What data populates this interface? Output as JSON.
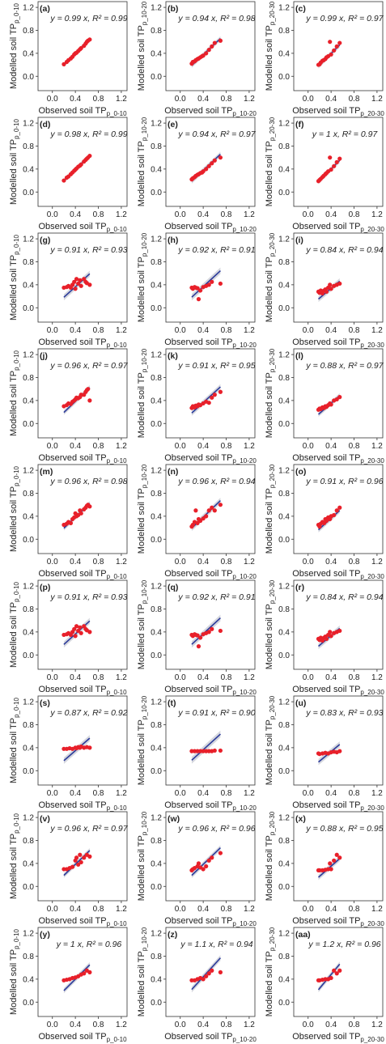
{
  "figure": {
    "colors": {
      "point": "#e8202a",
      "line": "#2b3a9a",
      "band": "#b9bdc8",
      "frame": "#333333"
    },
    "tick_labels": [
      "0.0",
      "0.4",
      "0.8",
      "1.2"
    ],
    "x_label_prefix": "Observed soil TP",
    "y_label_prefix": "Modelled soil TP",
    "depth_subscripts": [
      "p_0-10",
      "p_10-20",
      "p_20-30"
    ]
  },
  "chart_data": [
    {
      "type": "scatter",
      "label": "(a)",
      "equation": "y = 0.99 x, R² = 0.99",
      "slope": 0.99,
      "r2": 0.99,
      "xlabel": "Observed soil TPp_0-10",
      "ylabel": "Modelled soil TPp_0-10",
      "xlim": [
        -0.25,
        1.3
      ],
      "ylim": [
        -0.25,
        1.3
      ],
      "x": [
        0.2,
        0.25,
        0.28,
        0.32,
        0.35,
        0.38,
        0.4,
        0.42,
        0.45,
        0.48,
        0.5,
        0.55,
        0.58,
        0.6,
        0.62,
        0.65
      ],
      "y": [
        0.21,
        0.25,
        0.28,
        0.31,
        0.34,
        0.38,
        0.4,
        0.41,
        0.44,
        0.47,
        0.49,
        0.53,
        0.57,
        0.6,
        0.62,
        0.64
      ]
    },
    {
      "type": "scatter",
      "label": "(b)",
      "equation": "y = 0.94 x, R² = 0.98",
      "slope": 0.94,
      "r2": 0.98,
      "xlabel": "Observed soil TPp_10-20",
      "ylabel": "Modelled soil TPp_10-20",
      "xlim": [
        -0.25,
        1.3
      ],
      "ylim": [
        -0.25,
        1.3
      ],
      "x": [
        0.2,
        0.22,
        0.25,
        0.27,
        0.3,
        0.32,
        0.35,
        0.38,
        0.4,
        0.45,
        0.5,
        0.55,
        0.6,
        0.7
      ],
      "y": [
        0.22,
        0.25,
        0.26,
        0.28,
        0.3,
        0.31,
        0.33,
        0.35,
        0.36,
        0.4,
        0.46,
        0.52,
        0.58,
        0.62
      ]
    },
    {
      "type": "scatter",
      "label": "(c)",
      "equation": "y = 0.99 x, R² = 0.97",
      "slope": 0.99,
      "r2": 0.97,
      "xlabel": "Observed soil TPp_20-30",
      "ylabel": "Modelled soil TPp_20-30",
      "xlim": [
        -0.25,
        1.3
      ],
      "ylim": [
        -0.25,
        1.3
      ],
      "x": [
        0.18,
        0.2,
        0.22,
        0.25,
        0.27,
        0.3,
        0.32,
        0.35,
        0.38,
        0.4,
        0.45,
        0.5,
        0.55
      ],
      "y": [
        0.2,
        0.21,
        0.24,
        0.27,
        0.28,
        0.3,
        0.33,
        0.35,
        0.6,
        0.38,
        0.45,
        0.52,
        0.58
      ]
    },
    {
      "type": "scatter",
      "label": "(d)",
      "equation": "y = 0.98 x, R² = 0.99",
      "slope": 0.98,
      "r2": 0.99,
      "xlabel": "Observed soil TPp_0-10",
      "ylabel": "Modelled soil TPp_0-10",
      "xlim": [
        -0.25,
        1.3
      ],
      "ylim": [
        -0.25,
        1.3
      ],
      "x": [
        0.2,
        0.25,
        0.28,
        0.32,
        0.35,
        0.38,
        0.4,
        0.42,
        0.45,
        0.48,
        0.5,
        0.55,
        0.58,
        0.6,
        0.62,
        0.65
      ],
      "y": [
        0.2,
        0.25,
        0.27,
        0.31,
        0.34,
        0.37,
        0.39,
        0.41,
        0.44,
        0.46,
        0.48,
        0.53,
        0.56,
        0.58,
        0.6,
        0.63
      ]
    },
    {
      "type": "scatter",
      "label": "(e)",
      "equation": "y = 0.94 x, R² = 0.97",
      "slope": 0.94,
      "r2": 0.97,
      "xlabel": "Observed soil TPp_10-20",
      "ylabel": "Modelled soil TPp_10-20",
      "xlim": [
        -0.25,
        1.3
      ],
      "ylim": [
        -0.25,
        1.3
      ],
      "x": [
        0.2,
        0.22,
        0.25,
        0.27,
        0.3,
        0.32,
        0.35,
        0.38,
        0.4,
        0.45,
        0.5,
        0.55,
        0.6,
        0.7
      ],
      "y": [
        0.22,
        0.24,
        0.26,
        0.28,
        0.3,
        0.31,
        0.33,
        0.34,
        0.36,
        0.4,
        0.45,
        0.5,
        0.55,
        0.6
      ]
    },
    {
      "type": "scatter",
      "label": "(f)",
      "equation": "y = 1 x, R² = 0.97",
      "slope": 1.0,
      "r2": 0.97,
      "xlabel": "Observed soil TPp_20-30",
      "ylabel": "Modelled soil TPp_20-30",
      "xlim": [
        -0.25,
        1.3
      ],
      "ylim": [
        -0.25,
        1.3
      ],
      "x": [
        0.18,
        0.2,
        0.22,
        0.25,
        0.27,
        0.3,
        0.32,
        0.35,
        0.38,
        0.4,
        0.45,
        0.5,
        0.55
      ],
      "y": [
        0.19,
        0.21,
        0.23,
        0.26,
        0.28,
        0.31,
        0.33,
        0.36,
        0.6,
        0.39,
        0.45,
        0.52,
        0.58
      ]
    },
    {
      "type": "scatter",
      "label": "(g)",
      "equation": "y = 0.91 x, R² = 0.93",
      "slope": 0.91,
      "r2": 0.93,
      "xlabel": "Observed soil TPp_0-10",
      "ylabel": "Modelled soil TPp_0-10",
      "xlim": [
        -0.25,
        1.3
      ],
      "ylim": [
        -0.25,
        1.3
      ],
      "x": [
        0.2,
        0.25,
        0.28,
        0.32,
        0.35,
        0.38,
        0.4,
        0.42,
        0.45,
        0.48,
        0.5,
        0.55,
        0.58,
        0.6,
        0.65
      ],
      "y": [
        0.35,
        0.36,
        0.38,
        0.35,
        0.4,
        0.45,
        0.33,
        0.5,
        0.42,
        0.48,
        0.38,
        0.5,
        0.45,
        0.43,
        0.4
      ]
    },
    {
      "type": "scatter",
      "label": "(h)",
      "equation": "y = 0.92 x, R² = 0.91",
      "slope": 0.92,
      "r2": 0.91,
      "xlabel": "Observed soil TPp_10-20",
      "ylabel": "Modelled soil TPp_10-20",
      "xlim": [
        -0.25,
        1.3
      ],
      "ylim": [
        -0.25,
        1.3
      ],
      "x": [
        0.2,
        0.22,
        0.25,
        0.27,
        0.3,
        0.32,
        0.35,
        0.4,
        0.45,
        0.5,
        0.55,
        0.7
      ],
      "y": [
        0.35,
        0.33,
        0.36,
        0.35,
        0.34,
        0.15,
        0.3,
        0.36,
        0.38,
        0.4,
        0.45,
        0.42
      ]
    },
    {
      "type": "scatter",
      "label": "(i)",
      "equation": "y = 0.84 x, R² = 0.94",
      "slope": 0.84,
      "r2": 0.94,
      "xlabel": "Observed soil TPp_20-30",
      "ylabel": "Modelled soil TPp_20-30",
      "xlim": [
        -0.25,
        1.3
      ],
      "ylim": [
        -0.25,
        1.3
      ],
      "x": [
        0.18,
        0.2,
        0.22,
        0.25,
        0.28,
        0.3,
        0.32,
        0.35,
        0.38,
        0.4,
        0.45,
        0.5,
        0.55
      ],
      "y": [
        0.28,
        0.26,
        0.3,
        0.25,
        0.3,
        0.32,
        0.28,
        0.35,
        0.4,
        0.33,
        0.38,
        0.4,
        0.42
      ]
    },
    {
      "type": "scatter",
      "label": "(j)",
      "equation": "y = 0.96 x, R² = 0.97",
      "slope": 0.96,
      "r2": 0.97,
      "xlabel": "Observed soil TPp_0-10",
      "ylabel": "Modelled soil TPp_0-10",
      "xlim": [
        -0.25,
        1.3
      ],
      "ylim": [
        -0.25,
        1.3
      ],
      "x": [
        0.2,
        0.25,
        0.28,
        0.32,
        0.35,
        0.38,
        0.4,
        0.42,
        0.45,
        0.48,
        0.5,
        0.55,
        0.58,
        0.6,
        0.62,
        0.65
      ],
      "y": [
        0.3,
        0.32,
        0.35,
        0.34,
        0.38,
        0.4,
        0.42,
        0.45,
        0.44,
        0.46,
        0.5,
        0.5,
        0.55,
        0.58,
        0.6,
        0.4
      ]
    },
    {
      "type": "scatter",
      "label": "(k)",
      "equation": "y = 0.91 x, R² = 0.95",
      "slope": 0.91,
      "r2": 0.95,
      "xlabel": "Observed soil TPp_10-20",
      "ylabel": "Modelled soil TPp_10-20",
      "xlim": [
        -0.25,
        1.3
      ],
      "ylim": [
        -0.25,
        1.3
      ],
      "x": [
        0.2,
        0.22,
        0.25,
        0.27,
        0.3,
        0.32,
        0.35,
        0.4,
        0.45,
        0.5,
        0.55,
        0.6,
        0.7
      ],
      "y": [
        0.27,
        0.3,
        0.28,
        0.31,
        0.3,
        0.33,
        0.32,
        0.35,
        0.38,
        0.36,
        0.45,
        0.5,
        0.55
      ]
    },
    {
      "type": "scatter",
      "label": "(l)",
      "equation": "y = 0.88 x, R² = 0.97",
      "slope": 0.88,
      "r2": 0.97,
      "xlabel": "Observed soil TPp_20-30",
      "ylabel": "Modelled soil TPp_20-30",
      "xlim": [
        -0.25,
        1.3
      ],
      "ylim": [
        -0.25,
        1.3
      ],
      "x": [
        0.18,
        0.2,
        0.22,
        0.25,
        0.28,
        0.3,
        0.32,
        0.35,
        0.38,
        0.4,
        0.45,
        0.5,
        0.55
      ],
      "y": [
        0.24,
        0.26,
        0.25,
        0.28,
        0.27,
        0.3,
        0.29,
        0.32,
        0.35,
        0.33,
        0.4,
        0.42,
        0.46
      ]
    },
    {
      "type": "scatter",
      "label": "(m)",
      "equation": "y = 0.96 x, R² = 0.98",
      "slope": 0.96,
      "r2": 0.98,
      "xlabel": "Observed soil TPp_0-10",
      "ylabel": "Modelled soil TPp_0-10",
      "xlim": [
        -0.25,
        1.3
      ],
      "ylim": [
        -0.25,
        1.3
      ],
      "x": [
        0.2,
        0.25,
        0.28,
        0.32,
        0.35,
        0.38,
        0.4,
        0.42,
        0.45,
        0.48,
        0.5,
        0.55,
        0.58,
        0.6,
        0.62,
        0.65
      ],
      "y": [
        0.25,
        0.27,
        0.3,
        0.28,
        0.35,
        0.38,
        0.45,
        0.4,
        0.42,
        0.5,
        0.45,
        0.52,
        0.55,
        0.58,
        0.6,
        0.57
      ]
    },
    {
      "type": "scatter",
      "label": "(n)",
      "equation": "y = 0.96 x, R² = 0.94",
      "slope": 0.96,
      "r2": 0.94,
      "xlabel": "Observed soil TPp_10-20",
      "ylabel": "Modelled soil TPp_10-20",
      "xlim": [
        -0.25,
        1.3
      ],
      "ylim": [
        -0.25,
        1.3
      ],
      "x": [
        0.2,
        0.22,
        0.25,
        0.27,
        0.3,
        0.32,
        0.35,
        0.4,
        0.45,
        0.5,
        0.55,
        0.6,
        0.7
      ],
      "y": [
        0.22,
        0.25,
        0.3,
        0.5,
        0.28,
        0.35,
        0.32,
        0.36,
        0.4,
        0.5,
        0.55,
        0.5,
        0.6
      ]
    },
    {
      "type": "scatter",
      "label": "(o)",
      "equation": "y = 0.91 x, R² = 0.96",
      "slope": 0.91,
      "r2": 0.96,
      "xlabel": "Observed soil TPp_20-30",
      "ylabel": "Modelled soil TPp_20-30",
      "xlim": [
        -0.25,
        1.3
      ],
      "ylim": [
        -0.25,
        1.3
      ],
      "x": [
        0.18,
        0.2,
        0.22,
        0.25,
        0.28,
        0.3,
        0.32,
        0.35,
        0.38,
        0.4,
        0.45,
        0.5,
        0.55
      ],
      "y": [
        0.25,
        0.22,
        0.27,
        0.3,
        0.28,
        0.35,
        0.32,
        0.38,
        0.35,
        0.4,
        0.42,
        0.5,
        0.55
      ]
    },
    {
      "type": "scatter",
      "label": "(p)",
      "equation": "y = 0.91 x, R² = 0.93",
      "slope": 0.91,
      "r2": 0.93,
      "xlabel": "Observed soil TPp_0-10",
      "ylabel": "Modelled soil TPp_0-10",
      "xlim": [
        -0.25,
        1.3
      ],
      "ylim": [
        -0.25,
        1.3
      ],
      "x": [
        0.2,
        0.25,
        0.28,
        0.32,
        0.35,
        0.38,
        0.4,
        0.42,
        0.45,
        0.48,
        0.5,
        0.55,
        0.58,
        0.6,
        0.65
      ],
      "y": [
        0.35,
        0.36,
        0.38,
        0.35,
        0.4,
        0.45,
        0.33,
        0.5,
        0.42,
        0.48,
        0.38,
        0.5,
        0.45,
        0.43,
        0.4
      ]
    },
    {
      "type": "scatter",
      "label": "(q)",
      "equation": "y = 0.92 x, R² = 0.91",
      "slope": 0.92,
      "r2": 0.91,
      "xlabel": "Observed soil TPp_10-20",
      "ylabel": "Modelled soil TPp_10-20",
      "xlim": [
        -0.25,
        1.3
      ],
      "ylim": [
        -0.25,
        1.3
      ],
      "x": [
        0.2,
        0.22,
        0.25,
        0.27,
        0.3,
        0.32,
        0.35,
        0.4,
        0.45,
        0.5,
        0.55,
        0.7
      ],
      "y": [
        0.35,
        0.33,
        0.36,
        0.35,
        0.34,
        0.15,
        0.3,
        0.36,
        0.38,
        0.4,
        0.45,
        0.42
      ]
    },
    {
      "type": "scatter",
      "label": "(r)",
      "equation": "y = 0.84 x, R² = 0.94",
      "slope": 0.84,
      "r2": 0.94,
      "xlabel": "Observed soil TPp_20-30",
      "ylabel": "Modelled soil TPp_20-30",
      "xlim": [
        -0.25,
        1.3
      ],
      "ylim": [
        -0.25,
        1.3
      ],
      "x": [
        0.18,
        0.2,
        0.22,
        0.25,
        0.28,
        0.3,
        0.32,
        0.35,
        0.38,
        0.4,
        0.45,
        0.5,
        0.55
      ],
      "y": [
        0.28,
        0.26,
        0.3,
        0.25,
        0.3,
        0.32,
        0.28,
        0.35,
        0.4,
        0.33,
        0.38,
        0.4,
        0.42
      ]
    },
    {
      "type": "scatter",
      "label": "(s)",
      "equation": "y = 0.87 x, R² = 0.92",
      "slope": 0.87,
      "r2": 0.92,
      "xlabel": "Observed soil TPp_0-10",
      "ylabel": "Modelled soil TPp_0-10",
      "xlim": [
        -0.25,
        1.3
      ],
      "ylim": [
        -0.25,
        1.3
      ],
      "x": [
        0.2,
        0.25,
        0.3,
        0.35,
        0.4,
        0.42,
        0.45,
        0.48,
        0.5,
        0.55,
        0.6,
        0.65
      ],
      "y": [
        0.38,
        0.38,
        0.39,
        0.38,
        0.4,
        0.39,
        0.41,
        0.4,
        0.42,
        0.4,
        0.41,
        0.4
      ]
    },
    {
      "type": "scatter",
      "label": "(t)",
      "equation": "y = 0.91 x, R² = 0.90",
      "slope": 0.91,
      "r2": 0.9,
      "xlabel": "Observed soil TPp_10-20",
      "ylabel": "Modelled soil TPp_10-20",
      "xlim": [
        -0.25,
        1.3
      ],
      "ylim": [
        -0.25,
        1.3
      ],
      "x": [
        0.2,
        0.25,
        0.3,
        0.35,
        0.4,
        0.45,
        0.5,
        0.55,
        0.6,
        0.7
      ],
      "y": [
        0.34,
        0.34,
        0.34,
        0.34,
        0.34,
        0.34,
        0.34,
        0.34,
        0.35,
        0.35
      ]
    },
    {
      "type": "scatter",
      "label": "(u)",
      "equation": "y = 0.83 x, R² = 0.93",
      "slope": 0.83,
      "r2": 0.93,
      "xlabel": "Observed soil TPp_20-30",
      "ylabel": "Modelled soil TPp_20-30",
      "xlim": [
        -0.25,
        1.3
      ],
      "ylim": [
        -0.25,
        1.3
      ],
      "x": [
        0.18,
        0.2,
        0.25,
        0.3,
        0.35,
        0.4,
        0.45,
        0.5,
        0.55
      ],
      "y": [
        0.3,
        0.29,
        0.3,
        0.31,
        0.3,
        0.32,
        0.33,
        0.32,
        0.34
      ]
    },
    {
      "type": "scatter",
      "label": "(v)",
      "equation": "y = 0.96 x, R² = 0.97",
      "slope": 0.96,
      "r2": 0.97,
      "xlabel": "Observed soil TPp_0-10",
      "ylabel": "Modelled soil TPp_0-10",
      "xlim": [
        -0.25,
        1.3
      ],
      "ylim": [
        -0.25,
        1.3
      ],
      "x": [
        0.2,
        0.25,
        0.3,
        0.35,
        0.4,
        0.42,
        0.45,
        0.48,
        0.5,
        0.55,
        0.6,
        0.65
      ],
      "y": [
        0.3,
        0.3,
        0.32,
        0.34,
        0.45,
        0.5,
        0.38,
        0.55,
        0.42,
        0.5,
        0.55,
        0.52
      ]
    },
    {
      "type": "scatter",
      "label": "(w)",
      "equation": "y = 0.96 x, R² = 0.96",
      "slope": 0.96,
      "r2": 0.96,
      "xlabel": "Observed soil TPp_10-20",
      "ylabel": "Modelled soil TPp_10-20",
      "xlim": [
        -0.25,
        1.3
      ],
      "ylim": [
        -0.25,
        1.3
      ],
      "x": [
        0.2,
        0.22,
        0.25,
        0.3,
        0.32,
        0.35,
        0.4,
        0.45,
        0.5,
        0.55,
        0.7
      ],
      "y": [
        0.28,
        0.3,
        0.32,
        0.35,
        0.4,
        0.33,
        0.3,
        0.35,
        0.45,
        0.5,
        0.58
      ]
    },
    {
      "type": "scatter",
      "label": "(x)",
      "equation": "y = 0.88 x, R² = 0.95",
      "slope": 0.88,
      "r2": 0.95,
      "xlabel": "Observed soil TPp_20-30",
      "ylabel": "Modelled soil TPp_20-30",
      "xlim": [
        -0.25,
        1.3
      ],
      "ylim": [
        -0.25,
        1.3
      ],
      "x": [
        0.18,
        0.2,
        0.25,
        0.3,
        0.35,
        0.38,
        0.4,
        0.45,
        0.5,
        0.55
      ],
      "y": [
        0.28,
        0.28,
        0.28,
        0.29,
        0.3,
        0.4,
        0.3,
        0.45,
        0.55,
        0.5
      ]
    },
    {
      "type": "scatter",
      "label": "(y)",
      "equation": "y = 1 x, R² = 0.96",
      "slope": 1.0,
      "r2": 0.96,
      "xlabel": "Observed soil TPp_0-10",
      "ylabel": "Modelled soil TPp_0-10",
      "xlim": [
        -0.25,
        1.3
      ],
      "ylim": [
        -0.25,
        1.3
      ],
      "x": [
        0.2,
        0.25,
        0.3,
        0.35,
        0.4,
        0.45,
        0.5,
        0.55,
        0.6,
        0.65
      ],
      "y": [
        0.38,
        0.39,
        0.4,
        0.42,
        0.43,
        0.45,
        0.48,
        0.5,
        0.55,
        0.52
      ]
    },
    {
      "type": "scatter",
      "label": "(z)",
      "equation": "y = 1.1 x, R² = 0.94",
      "slope": 1.1,
      "r2": 0.94,
      "xlabel": "Observed soil TPp_10-20",
      "ylabel": "Modelled soil TPp_10-20",
      "xlim": [
        -0.25,
        1.3
      ],
      "ylim": [
        -0.25,
        1.3
      ],
      "x": [
        0.2,
        0.25,
        0.3,
        0.35,
        0.4,
        0.45,
        0.5,
        0.55,
        0.7
      ],
      "y": [
        0.38,
        0.38,
        0.4,
        0.42,
        0.4,
        0.45,
        0.5,
        0.55,
        0.52
      ]
    },
    {
      "type": "scatter",
      "label": "(aa)",
      "equation": "y = 1.2 x, R² = 0.96",
      "slope": 1.2,
      "r2": 0.96,
      "xlabel": "Observed soil TPp_20-30",
      "ylabel": "Modelled soil TPp_20-30",
      "xlim": [
        -0.25,
        1.3
      ],
      "ylim": [
        -0.25,
        1.3
      ],
      "x": [
        0.18,
        0.2,
        0.25,
        0.3,
        0.35,
        0.4,
        0.45,
        0.5,
        0.55
      ],
      "y": [
        0.38,
        0.38,
        0.39,
        0.4,
        0.4,
        0.42,
        0.55,
        0.5,
        0.55
      ]
    }
  ]
}
